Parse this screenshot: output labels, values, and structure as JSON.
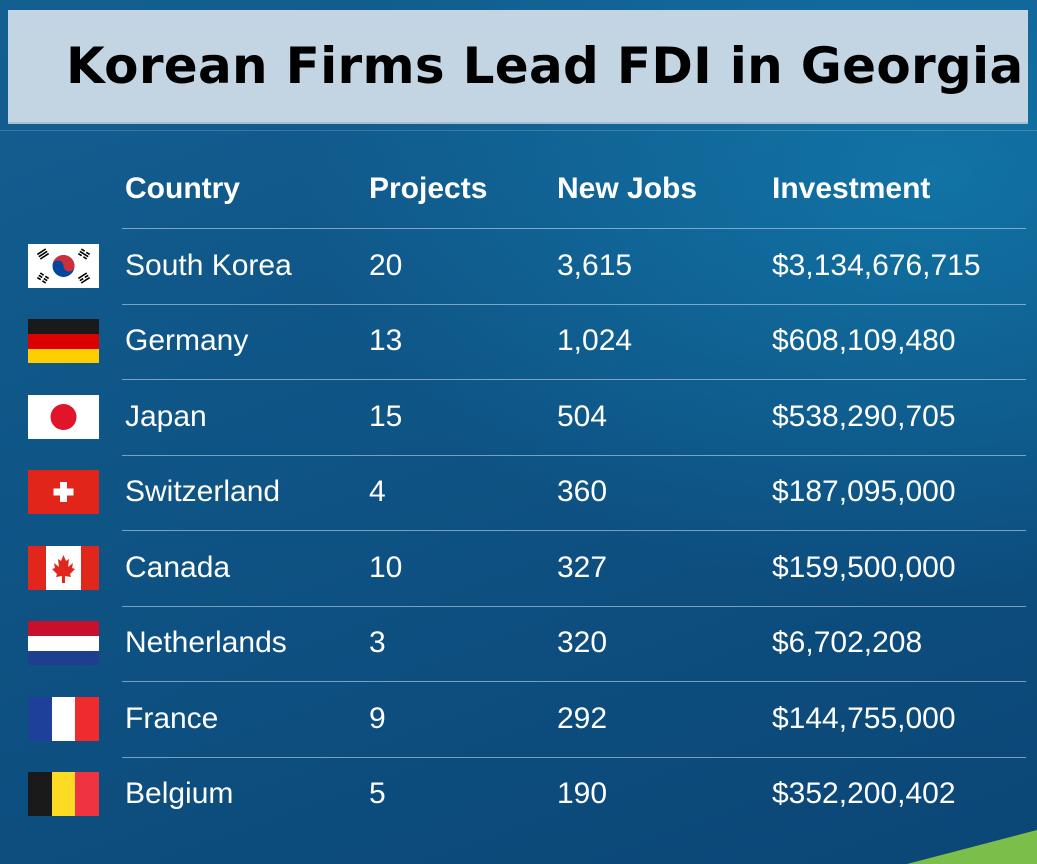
{
  "title": "Korean Firms Lead FDI in Georgia",
  "chart_data": {
    "type": "table",
    "columns": [
      "Country",
      "Projects",
      "New Jobs",
      "Investment"
    ],
    "rows": [
      {
        "flag": "flag-south-korea",
        "country": "South Korea",
        "projects": "20",
        "jobs": "3,615",
        "investment": "$3,134,676,715"
      },
      {
        "flag": "flag-germany",
        "country": "Germany",
        "projects": "13",
        "jobs": "1,024",
        "investment": "$608,109,480"
      },
      {
        "flag": "flag-japan",
        "country": "Japan",
        "projects": "15",
        "jobs": "504",
        "investment": "$538,290,705"
      },
      {
        "flag": "flag-switzerland",
        "country": "Switzerland",
        "projects": "4",
        "jobs": "360",
        "investment": "$187,095,000"
      },
      {
        "flag": "flag-canada",
        "country": "Canada",
        "projects": "10",
        "jobs": "327",
        "investment": "$159,500,000"
      },
      {
        "flag": "flag-netherlands",
        "country": "Netherlands",
        "projects": "3",
        "jobs": "320",
        "investment": "$6,702,208"
      },
      {
        "flag": "flag-france",
        "country": "France",
        "projects": "9",
        "jobs": "292",
        "investment": "$144,755,000"
      },
      {
        "flag": "flag-belgium",
        "country": "Belgium",
        "projects": "5",
        "jobs": "190",
        "investment": "$352,200,402"
      }
    ]
  },
  "colors": {
    "title_bar": "#c3d4e2",
    "background": "#0e5485",
    "accent": "#7bbf4a"
  }
}
